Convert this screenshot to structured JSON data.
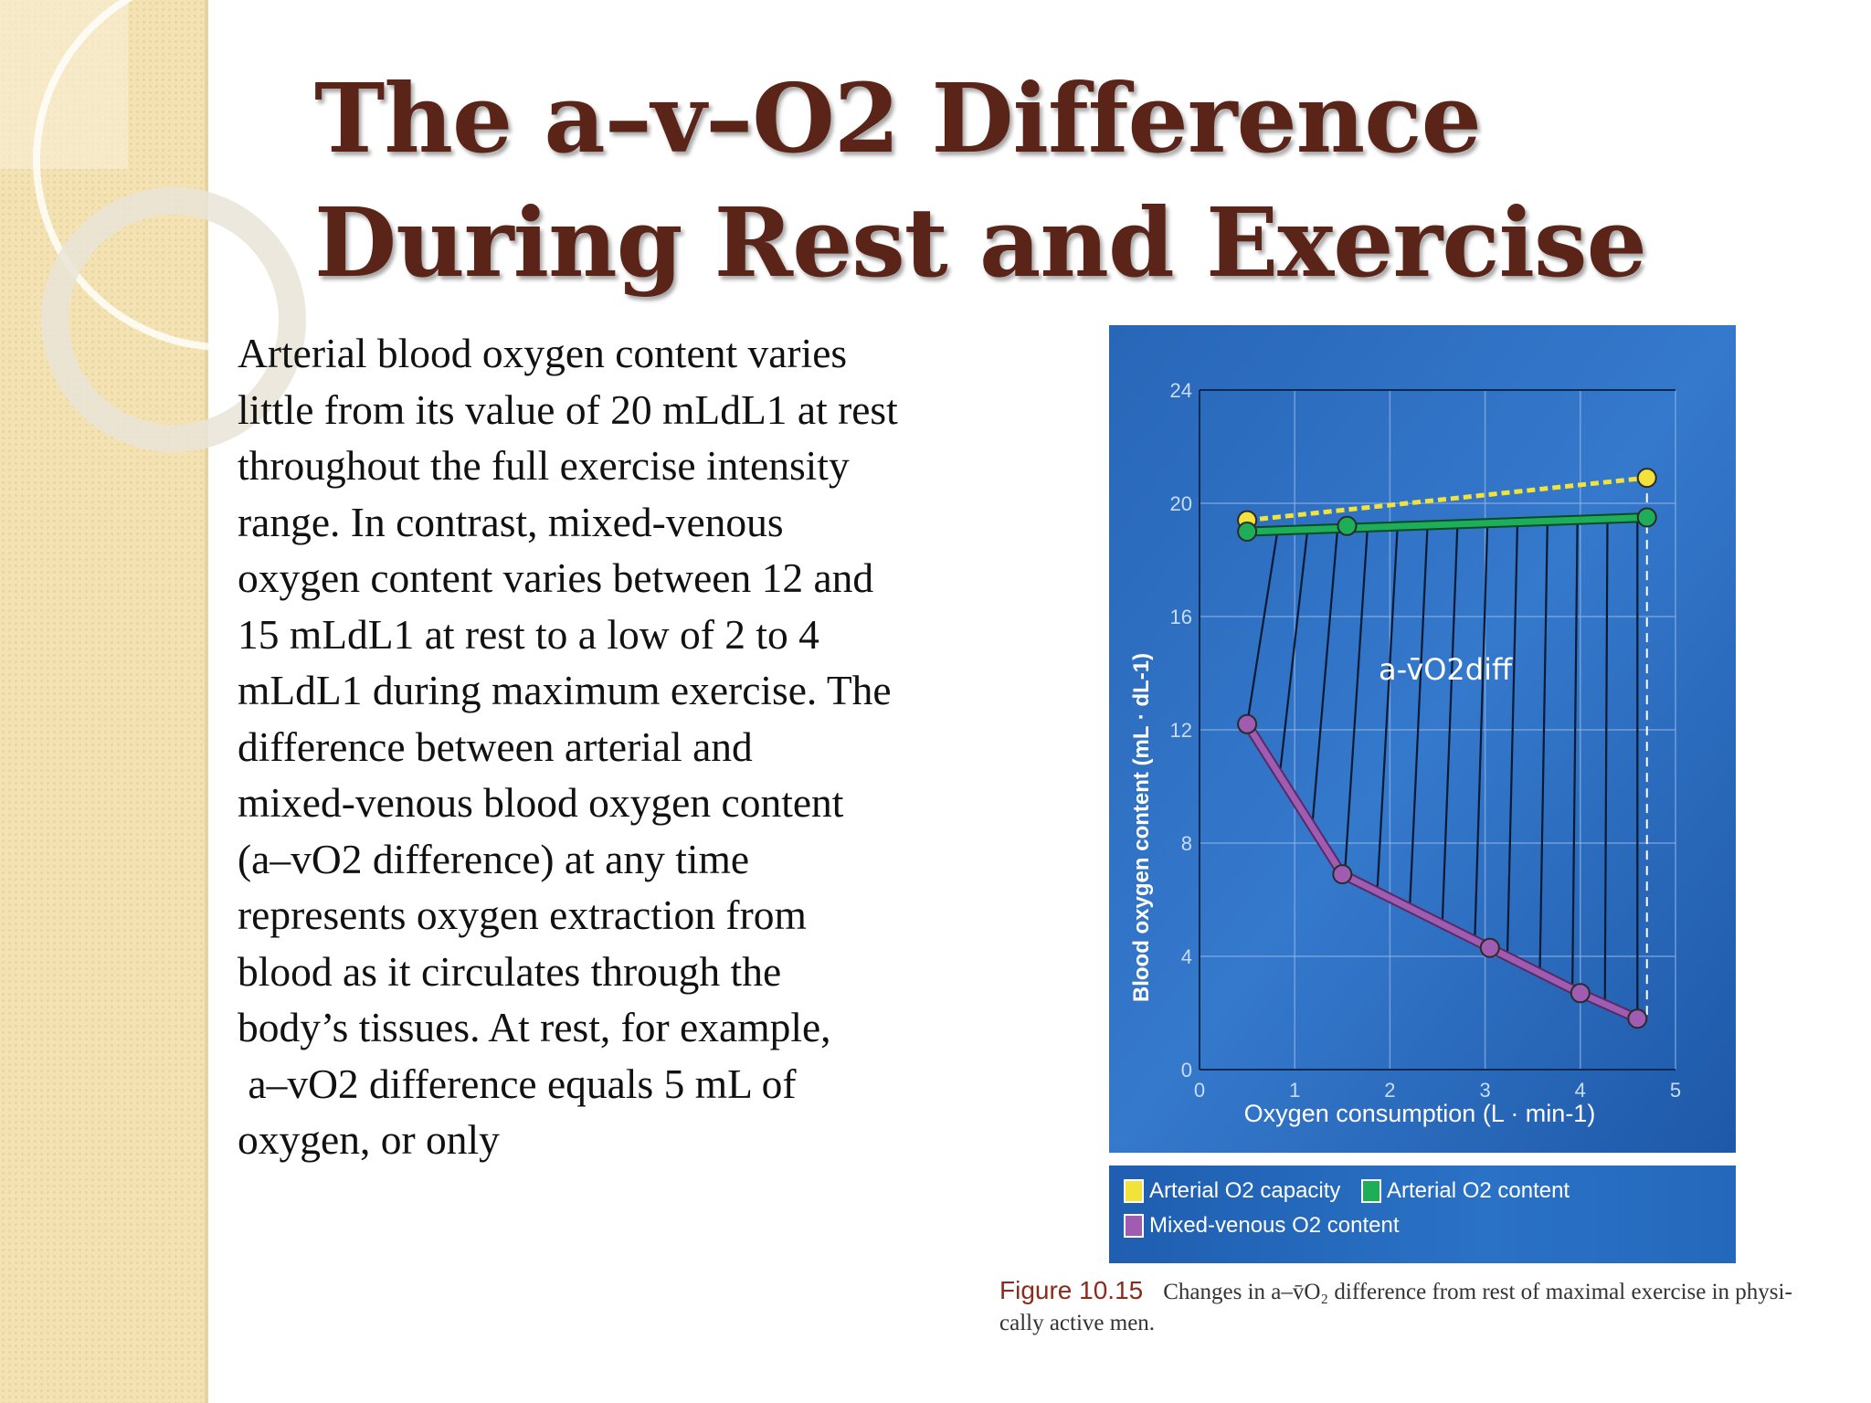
{
  "slide": {
    "title": "The a–v–O2 Difference During Rest and Exercise",
    "body": "Arterial blood oxygen content varies\nlittle from its value of 20 mLdL1 at rest\nthroughout the full exercise intensity\nrange. In contrast, mixed-venous\noxygen content varies between 12 and\n15 mLdL1 at rest to a low of 2 to 4\nmLdL1 during maximum exercise. The\ndifference between arterial and\nmixed-venous blood oxygen content\n(a–vO2 difference) at any time\nrepresents oxygen extraction from\nblood as it circulates through the\nbody’s tissues. At rest, for example,\n a–vO2 difference equals 5 mL of\noxygen, or only"
  },
  "figure": {
    "label": "Figure 10.15",
    "caption": "Changes in a–v̄O₂ difference from rest of maximal exercise in physi- cally active men.",
    "annotation": "a-v̄O2diff",
    "legend": [
      {
        "label": "Arterial O2 capacity",
        "color": "#f2e23a"
      },
      {
        "label": "Arterial O2 content",
        "color": "#1eae5a"
      },
      {
        "label": "Mixed-venous O2 content",
        "color": "#a05cb0"
      }
    ]
  },
  "chart_data": {
    "type": "line",
    "xlabel": "Oxygen consumption (L · min-1)",
    "ylabel": "Blood oxygen content (mL · dL-1)",
    "xlim": [
      0,
      5
    ],
    "ylim": [
      0,
      24
    ],
    "xticks": [
      "0",
      "1",
      "2",
      "3",
      "4",
      "5"
    ],
    "yticks": [
      "0",
      "4",
      "8",
      "12",
      "16",
      "20",
      "24"
    ],
    "grid": true,
    "series": [
      {
        "name": "Arterial O2 capacity",
        "color": "#f2e23a",
        "style": "dashed",
        "points": [
          [
            0.5,
            19.4
          ],
          [
            4.7,
            20.9
          ]
        ],
        "markers": [
          [
            0.5,
            19.4
          ],
          [
            4.7,
            20.9
          ]
        ]
      },
      {
        "name": "Arterial O2 content",
        "color": "#1eae5a",
        "style": "solid",
        "points": [
          [
            0.5,
            19.0
          ],
          [
            4.7,
            19.5
          ]
        ],
        "markers": [
          [
            0.5,
            19.0
          ],
          [
            1.55,
            19.2
          ],
          [
            4.7,
            19.5
          ]
        ]
      },
      {
        "name": "Mixed-venous O2 content",
        "color": "#a05cb0",
        "style": "solid",
        "points": [
          [
            0.5,
            12.2
          ],
          [
            1.5,
            6.9
          ],
          [
            3.05,
            4.3
          ],
          [
            4.0,
            2.7
          ],
          [
            4.6,
            1.8
          ]
        ],
        "markers": [
          [
            0.5,
            12.2
          ],
          [
            1.5,
            6.9
          ],
          [
            3.05,
            4.3
          ],
          [
            4.0,
            2.7
          ],
          [
            4.6,
            1.8
          ]
        ]
      }
    ]
  }
}
